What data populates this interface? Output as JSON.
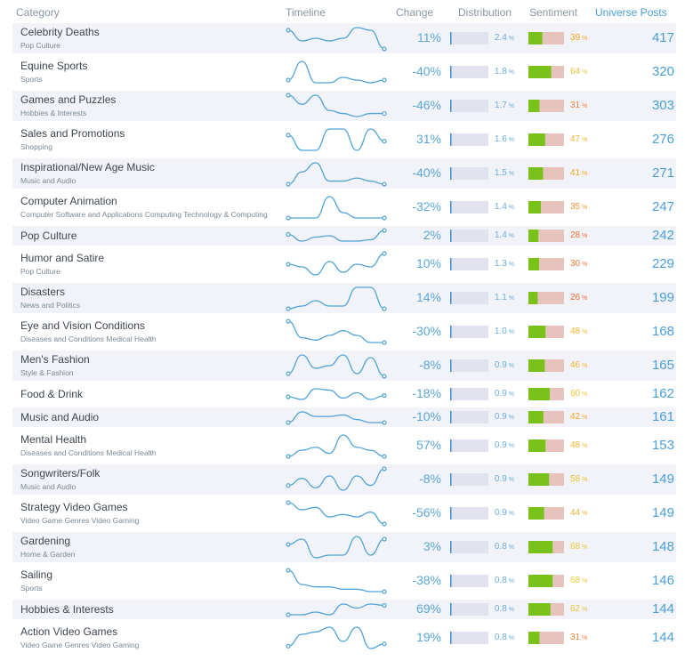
{
  "header": {
    "category": "Category",
    "timeline": "Timeline",
    "change": "Change",
    "distribution": "Distribution",
    "sentiment": "Sentiment",
    "posts": "Universe Posts"
  },
  "percent_sign": "%",
  "rows": [
    {
      "category": "Celebrity Deaths",
      "subcategory": "Pop Culture",
      "timeline": [
        8,
        4,
        5,
        4,
        5,
        9,
        8,
        1
      ],
      "change": "11%",
      "distribution": "2.4",
      "sentiment": 39,
      "sentiment_color": "#f5a623",
      "posts": 417
    },
    {
      "category": "Equine Sports",
      "subcategory": "Sports",
      "timeline": [
        2,
        9,
        1,
        1,
        3,
        2,
        1,
        2
      ],
      "change": "-40%",
      "distribution": "1.8",
      "sentiment": 64,
      "sentiment_color": "#e8c53a",
      "posts": 320
    },
    {
      "category": "Games and Puzzles",
      "subcategory": "Hobbies & Interests",
      "timeline": [
        9,
        6,
        9,
        4,
        3,
        2,
        3,
        3
      ],
      "change": "-46%",
      "distribution": "1.7",
      "sentiment": 31,
      "sentiment_color": "#f0813a",
      "posts": 303
    },
    {
      "category": "Sales and Promotions",
      "subcategory": "Shopping",
      "timeline": [
        7,
        2,
        2,
        9,
        9,
        2,
        9,
        5
      ],
      "change": "31%",
      "distribution": "1.6",
      "sentiment": 47,
      "sentiment_color": "#f2b134",
      "posts": 276
    },
    {
      "category": "Inspirational/New Age Music",
      "subcategory": "Music and Audio",
      "timeline": [
        2,
        6,
        9,
        3,
        3,
        4,
        3,
        2
      ],
      "change": "-40%",
      "distribution": "1.5",
      "sentiment": 41,
      "sentiment_color": "#f5a623",
      "posts": 271
    },
    {
      "category": "Computer Animation",
      "subcategory": "Computer Software and Applications Computing Technology & Computing",
      "timeline": [
        1,
        1,
        1,
        9,
        3,
        1,
        1,
        1
      ],
      "change": "-32%",
      "distribution": "1.4",
      "sentiment": 35,
      "sentiment_color": "#f39237",
      "posts": 247
    },
    {
      "category": "Pop Culture",
      "timeline": [
        7,
        2,
        5,
        6,
        2,
        2,
        3,
        10
      ],
      "change": "2%",
      "distribution": "1.4",
      "sentiment": 28,
      "sentiment_color": "#ef7033",
      "posts": 242
    },
    {
      "category": "Humor and Satire",
      "subcategory": "Pop Culture",
      "timeline": [
        6,
        5,
        2,
        7,
        3,
        6,
        5,
        10
      ],
      "change": "10%",
      "distribution": "1.3",
      "sentiment": 30,
      "sentiment_color": "#f07b35",
      "posts": 229
    },
    {
      "category": "Disasters",
      "subcategory": "News and Politics",
      "timeline": [
        2,
        3,
        5,
        3,
        3,
        10,
        10,
        2
      ],
      "change": "14%",
      "distribution": "1.1",
      "sentiment": 26,
      "sentiment_color": "#ee6a31",
      "posts": 199
    },
    {
      "category": "Eye and Vision Conditions",
      "subcategory": "Diseases and Conditions Medical Health",
      "timeline": [
        10,
        3,
        2,
        4,
        6,
        4,
        1,
        1
      ],
      "change": "-30%",
      "distribution": "1.0",
      "sentiment": 48,
      "sentiment_color": "#f2b82f",
      "posts": 168
    },
    {
      "category": "Men's Fashion",
      "subcategory": "Style & Fashion",
      "timeline": [
        2,
        9,
        4,
        5,
        9,
        2,
        8,
        1
      ],
      "change": "-8%",
      "distribution": "0.9",
      "sentiment": 46,
      "sentiment_color": "#f2b134",
      "posts": 165
    },
    {
      "category": "Food & Drink",
      "timeline": [
        3,
        1,
        9,
        8,
        2,
        6,
        1,
        4
      ],
      "change": "-18%",
      "distribution": "0.9",
      "sentiment": 60,
      "sentiment_color": "#ecc534",
      "posts": 162
    },
    {
      "category": "Music and Audio",
      "timeline": [
        2,
        9,
        6,
        6,
        7,
        4,
        2,
        2
      ],
      "change": "-10%",
      "distribution": "0.9",
      "sentiment": 42,
      "sentiment_color": "#f5a623",
      "posts": 161
    },
    {
      "category": "Mental Health",
      "subcategory": "Diseases and Conditions Medical Health",
      "timeline": [
        3,
        5,
        6,
        4,
        10,
        6,
        5,
        3
      ],
      "change": "57%",
      "distribution": "0.9",
      "sentiment": 48,
      "sentiment_color": "#f2b82f",
      "posts": 153
    },
    {
      "category": "Songwriters/Folk",
      "subcategory": "Music and Audio",
      "timeline": [
        3,
        6,
        2,
        7,
        1,
        7,
        3,
        10
      ],
      "change": "-8%",
      "distribution": "0.9",
      "sentiment": 58,
      "sentiment_color": "#eec232",
      "posts": 149
    },
    {
      "category": "Strategy Video Games",
      "subcategory": "Video Game Genres Video Gaming",
      "timeline": [
        10,
        7,
        8,
        4,
        5,
        4,
        6,
        1
      ],
      "change": "-56%",
      "distribution": "0.9",
      "sentiment": 44,
      "sentiment_color": "#f2b134",
      "posts": 149
    },
    {
      "category": "Gardening",
      "subcategory": "Home & Garden",
      "timeline": [
        6,
        8,
        1,
        2,
        2,
        9,
        2,
        8
      ],
      "change": "3%",
      "distribution": "0.8",
      "sentiment": 68,
      "sentiment_color": "#e7cb38",
      "posts": 148
    },
    {
      "category": "Sailing",
      "subcategory": "Sports",
      "timeline": [
        10,
        4,
        3,
        3,
        2,
        2,
        1,
        1
      ],
      "change": "-38%",
      "distribution": "0.8",
      "sentiment": 68,
      "sentiment_color": "#e7cb38",
      "posts": 146
    },
    {
      "category": "Hobbies & Interests",
      "timeline": [
        2,
        2,
        4,
        2,
        10,
        7,
        10,
        9
      ],
      "change": "69%",
      "distribution": "0.8",
      "sentiment": 62,
      "sentiment_color": "#e8c53a",
      "posts": 144
    },
    {
      "category": "Action Video Games",
      "subcategory": "Video Game Genres Video Gaming",
      "timeline": [
        1,
        6,
        7,
        9,
        3,
        9,
        0,
        2
      ],
      "change": "19%",
      "distribution": "0.8",
      "sentiment": 31,
      "sentiment_color": "#f0813a",
      "posts": 144
    }
  ]
}
